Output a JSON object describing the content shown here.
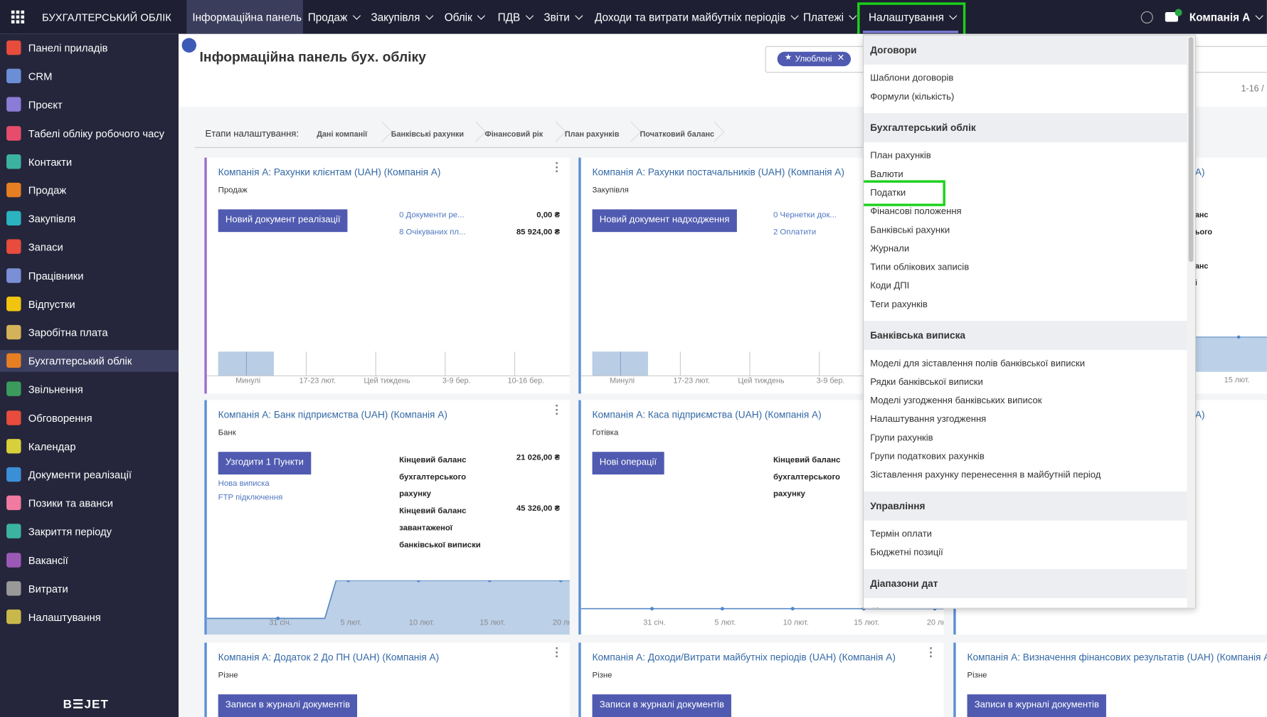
{
  "topbar": {
    "app_title": "БУХГАЛТЕРСЬКИЙ ОБЛІК",
    "menu": [
      "Інформаційна панель",
      "Продаж",
      "Закупівля",
      "Облік",
      "ПДВ",
      "Звіти",
      "Доходи та витрати майбутніх періодів",
      "Платежі",
      "Налаштування"
    ],
    "company": "Компанія А"
  },
  "sidebar": {
    "items": [
      "Панелі приладів",
      "CRM",
      "Проєкт",
      "Табелі обліку робочого часу",
      "Контакти",
      "Продаж",
      "Закупівля",
      "Запаси",
      "Працівники",
      "Відпустки",
      "Заробітна плата",
      "Бухгалтерський облік",
      "Звільнення",
      "Обговорення",
      "Календар",
      "Документи реалізації",
      "Позики та аванси",
      "Закриття періоду",
      "Вакансії",
      "Витрати",
      "Налаштування"
    ],
    "logo": "B☰JET"
  },
  "header": {
    "title": "Інформаційна панель бух. обліку",
    "filter_chip": "Улюблені",
    "pager": "1-16 /"
  },
  "setup": {
    "label": "Етапи налаштування:",
    "steps": [
      "Дані компанії",
      "Банківські рахунки",
      "Фінансовий рік",
      "План рахунків",
      "Початковий баланс"
    ]
  },
  "cards": [
    {
      "title": "Компанія А: Рахунки клієнтам (UAH) (Компанія А)",
      "subtitle": "Продаж",
      "button": "Новий документ реалізації",
      "links": [
        "0 Документи ре...",
        "8 Очікуваних пл..."
      ],
      "amounts": [
        "0,00 ₴",
        "85 924,00 ₴"
      ],
      "axis": [
        "Минулі",
        "17-23 лют.",
        "Цей тиждень",
        "3-9 бер.",
        "10-16 бер."
      ]
    },
    {
      "title": "Компанія А: Рахунки постачальників (UAH) (Компанія А)",
      "subtitle": "Закупівля",
      "button": "Новий документ надходження",
      "links": [
        "0 Чернетки док...",
        "2 Оплатити"
      ],
      "axis": [
        "Минулі",
        "17-23 лют.",
        "Цей тиждень",
        "3-9 бер."
      ]
    },
    {
      "title": "А)",
      "fragments": [
        "анс",
        "ього",
        "анс",
        "і"
      ],
      "axis": [
        "15 лют."
      ]
    },
    {
      "title": "Компанія А: Банк підприємства (UAH) (Компанія А)",
      "subtitle": "Банк",
      "button": "Узгодити 1 Пункти",
      "links": [
        "Нова виписка",
        "FTP підключення"
      ],
      "stats": [
        {
          "label": "Кінцевий баланс бухгалтерського рахунку",
          "value": "21 026,00 ₴"
        },
        {
          "label": "Кінцевий баланс завантаженої банківської виписки",
          "value": "45 326,00 ₴"
        }
      ],
      "axis": [
        "31 січ.",
        "5 лют.",
        "10 лют.",
        "15 лют.",
        "20 лю"
      ]
    },
    {
      "title": "Компанія А: Каса підприємства (UAH) (Компанія А)",
      "subtitle": "Готівка",
      "button": "Нові операції",
      "stats": [
        {
          "label": "Кінцевий баланс бухгалтерського рахунку"
        }
      ],
      "axis": [
        "31 січ.",
        "5 лют.",
        "10 лют.",
        "15 лют.",
        "20 лю"
      ]
    },
    {
      "title": "А)"
    },
    {
      "title": "Компанія А: Додаток 2 До ПН (UAH) (Компанія А)",
      "subtitle": "Різне",
      "button": "Записи в журналі документів"
    },
    {
      "title": "Компанія А: Доходи/Витрати майбутніх періодів (UAH) (Компанія А)",
      "subtitle": "Різне",
      "button": "Записи в журналі документів"
    },
    {
      "title": "Компанія А: Визначення фінансових результатів (UAH) (Компанія А",
      "subtitle": "Різне",
      "button": "Записи в журналі документів"
    }
  ],
  "dropdown": {
    "sections": [
      {
        "title": "Договори",
        "items": [
          "Шаблони договорів",
          "Формули (кількість)"
        ]
      },
      {
        "title": "Бухгалтерський облік",
        "items": [
          "План рахунків",
          "Валюти",
          "Податки",
          "Фінансові положення",
          "Банківські рахунки",
          "Журнали",
          "Типи облікових записів",
          "Коди ДПІ",
          "Теги рахунків"
        ]
      },
      {
        "title": "Банківська виписка",
        "items": [
          "Моделі для зіставлення полів банківської виписки",
          "Рядки банківської виписки",
          "Моделі узгодження банківських виписок",
          "Налаштування узгодження",
          "Групи рахунків",
          "Групи податкових рахунків",
          "Зіставлення рахунку перенесення в майбутній період"
        ]
      },
      {
        "title": "Управління",
        "items": [
          "Термін оплати",
          "Бюджетні позиції"
        ]
      },
      {
        "title": "Діапазони дат",
        "items": [
          "Діапазони дат"
        ]
      }
    ]
  }
}
